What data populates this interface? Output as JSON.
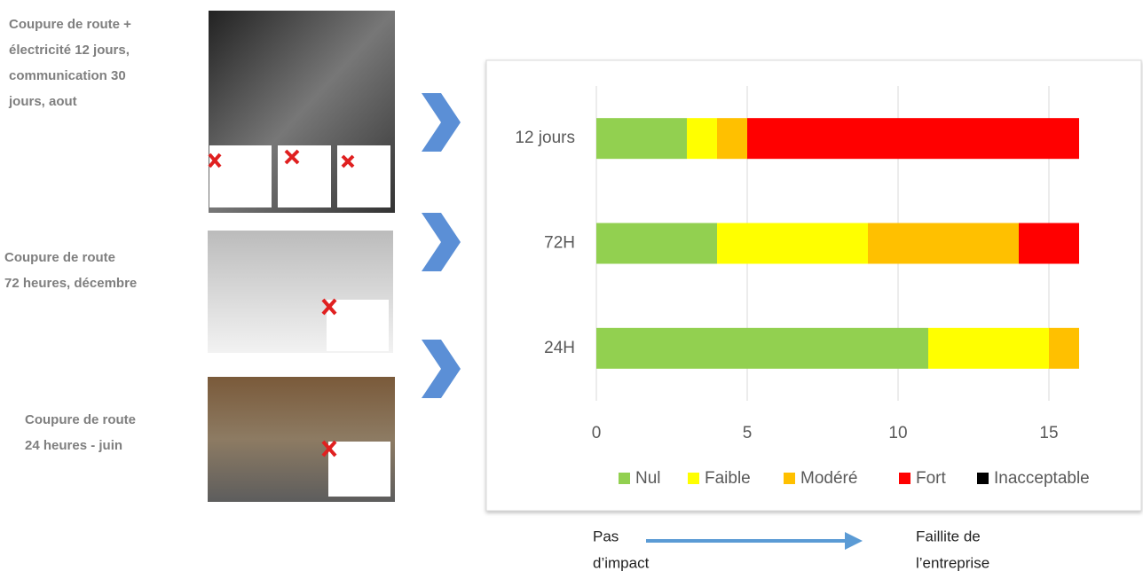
{
  "chart_data": {
    "type": "stacked-bar-horizontal",
    "categories": [
      "12 jours",
      "72H",
      "24H"
    ],
    "series": [
      {
        "name": "Nul",
        "color": "#92d050",
        "values": [
          3,
          4,
          11
        ]
      },
      {
        "name": "Faible",
        "color": "#ffff00",
        "values": [
          1,
          5,
          4
        ]
      },
      {
        "name": "Modéré",
        "color": "#ffc000",
        "values": [
          1,
          5,
          1
        ]
      },
      {
        "name": "Fort",
        "color": "#ff0000",
        "values": [
          11,
          2,
          0
        ]
      },
      {
        "name": "Inacceptable",
        "color": "#000000",
        "values": [
          0,
          0,
          0
        ]
      }
    ],
    "xlim": [
      0,
      16
    ],
    "xticks": [
      0,
      5,
      10,
      15
    ],
    "grid": true,
    "legend": "bottom"
  },
  "scenarios": [
    {
      "lines": [
        "Coupure de route +",
        "électricité 12 jours,",
        "communication 30",
        "jours, aout"
      ]
    },
    {
      "lines": [
        "Coupure de route",
        "72 heures, décembre"
      ]
    },
    {
      "lines": [
        "Coupure de route",
        "24 heures   - juin"
      ]
    }
  ],
  "scale": {
    "left": [
      "Pas",
      "d’impact"
    ],
    "right": [
      "Faillite de",
      "l’entreprise"
    ]
  }
}
